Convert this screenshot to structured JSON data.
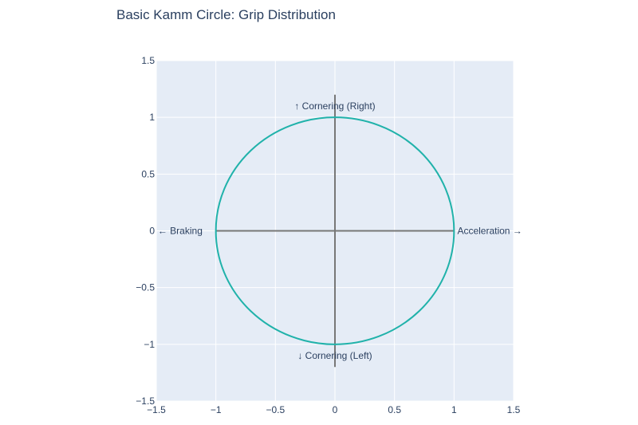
{
  "chart_data": {
    "type": "line",
    "title": "Basic Kamm Circle: Grip Distribution",
    "xlabel": "",
    "ylabel": "",
    "xlim": [
      -1.5,
      1.5
    ],
    "ylim": [
      -1.5,
      1.5
    ],
    "grid": true,
    "x_ticks": [
      -1.5,
      -1,
      -0.5,
      0,
      0.5,
      1,
      1.5
    ],
    "y_ticks": [
      -1.5,
      -1,
      -0.5,
      0,
      0.5,
      1,
      1.5
    ],
    "x_tick_labels": [
      "−1.5",
      "−1",
      "−0.5",
      "0",
      "0.5",
      "1",
      "1.5"
    ],
    "y_tick_labels": [
      "−1.5",
      "−1",
      "−0.5",
      "0",
      "0.5",
      "1",
      "1.5"
    ],
    "circle": {
      "center": [
        0,
        0
      ],
      "radius": 1,
      "color": "#20b2aa"
    },
    "axis_lines": [
      {
        "x": [
          -1.0,
          1.0
        ],
        "y": [
          0,
          0
        ],
        "color": "#777777"
      },
      {
        "x": [
          0,
          0
        ],
        "y": [
          -1.2,
          1.2
        ],
        "color": "#777777"
      }
    ],
    "annotations": [
      {
        "text": "Acceleration →",
        "x": 1.3,
        "y": 0
      },
      {
        "text": "← Braking",
        "x": -1.3,
        "y": 0
      },
      {
        "text": "↑ Cornering (Right)",
        "x": 0,
        "y": 1.1
      },
      {
        "text": "↓ Cornering (Left)",
        "x": 0,
        "y": -1.1
      }
    ]
  },
  "colors": {
    "plot_background": "#e5ecf6",
    "grid": "#ffffff",
    "text": "#2a3f5f"
  }
}
